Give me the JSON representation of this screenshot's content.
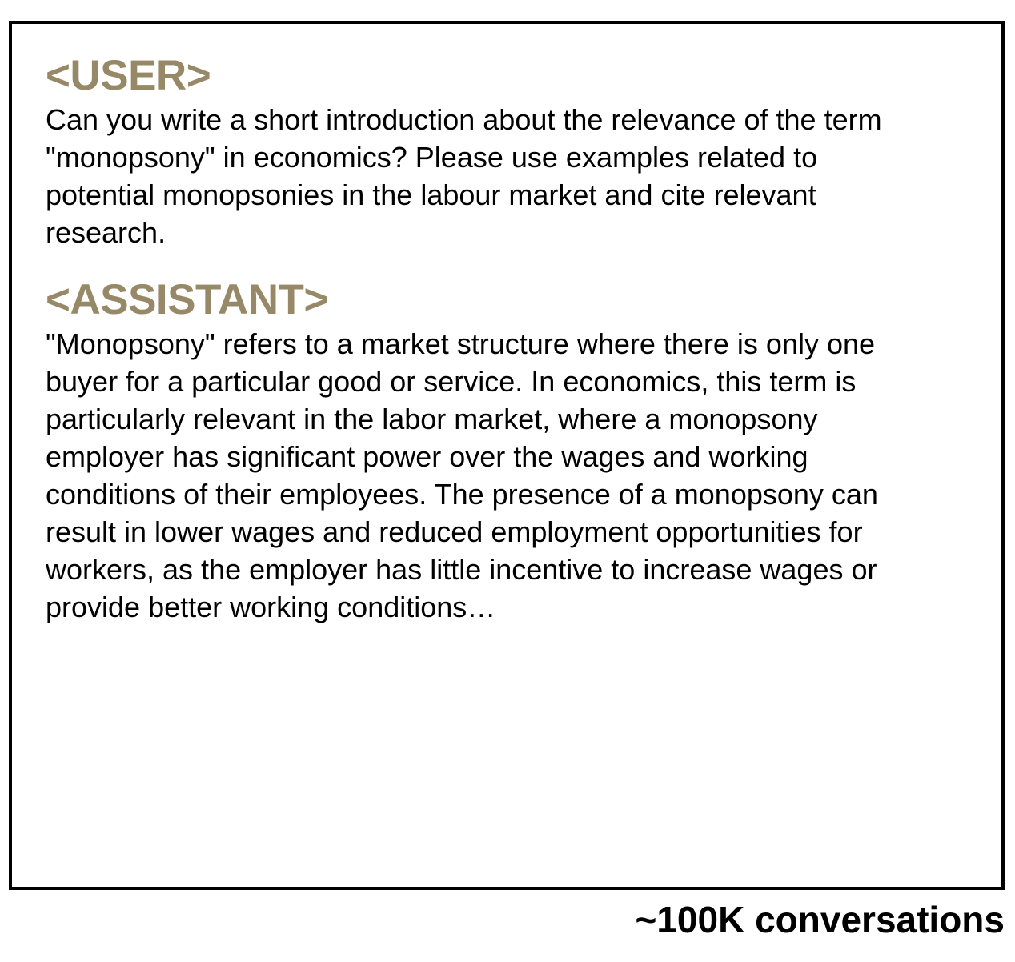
{
  "conversation": {
    "user_tag": "<USER>",
    "user_message": "Can you write a short introduction about the relevance of the term \"monopsony\" in economics? Please use examples related to potential monopsonies in the labour market and cite relevant research.",
    "assistant_tag": "<ASSISTANT>",
    "assistant_message": "\"Monopsony\" refers to a market structure where there is only one buyer for a particular good or service. In economics, this term is particularly relevant in the labor market, where a monopsony employer has significant power over the wages and working conditions of their employees. The presence of a monopsony can result in lower wages and reduced employment opportunities for workers, as the employer has little incentive to increase wages or provide better working conditions…"
  },
  "caption": "~100K conversations",
  "colors": {
    "role_tag": "#978967",
    "text": "#000000",
    "border": "#000000"
  }
}
